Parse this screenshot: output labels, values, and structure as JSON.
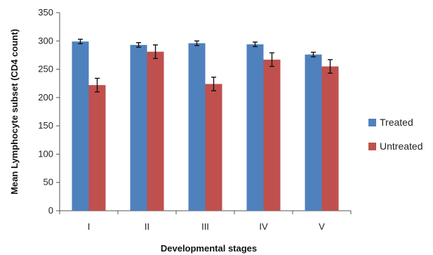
{
  "chart_data": {
    "type": "bar",
    "title": "",
    "xlabel": "Developmental stages",
    "ylabel": "Mean Lymphocyte subset (CD4 count)",
    "categories": [
      "I",
      "II",
      "III",
      "IV",
      "V"
    ],
    "ylim": [
      0,
      350
    ],
    "yticks": [
      0,
      50,
      100,
      150,
      200,
      250,
      300,
      350
    ],
    "grid": false,
    "legend_position": "right",
    "series": [
      {
        "name": "Treated",
        "color": "#4f81bd",
        "values": [
          299,
          293,
          296,
          294,
          276
        ],
        "errors": [
          4,
          4,
          4,
          4,
          4
        ]
      },
      {
        "name": "Untreated",
        "color": "#c0504d",
        "values": [
          222,
          281,
          224,
          267,
          255
        ],
        "errors": [
          12,
          12,
          12,
          12,
          12
        ]
      }
    ]
  }
}
